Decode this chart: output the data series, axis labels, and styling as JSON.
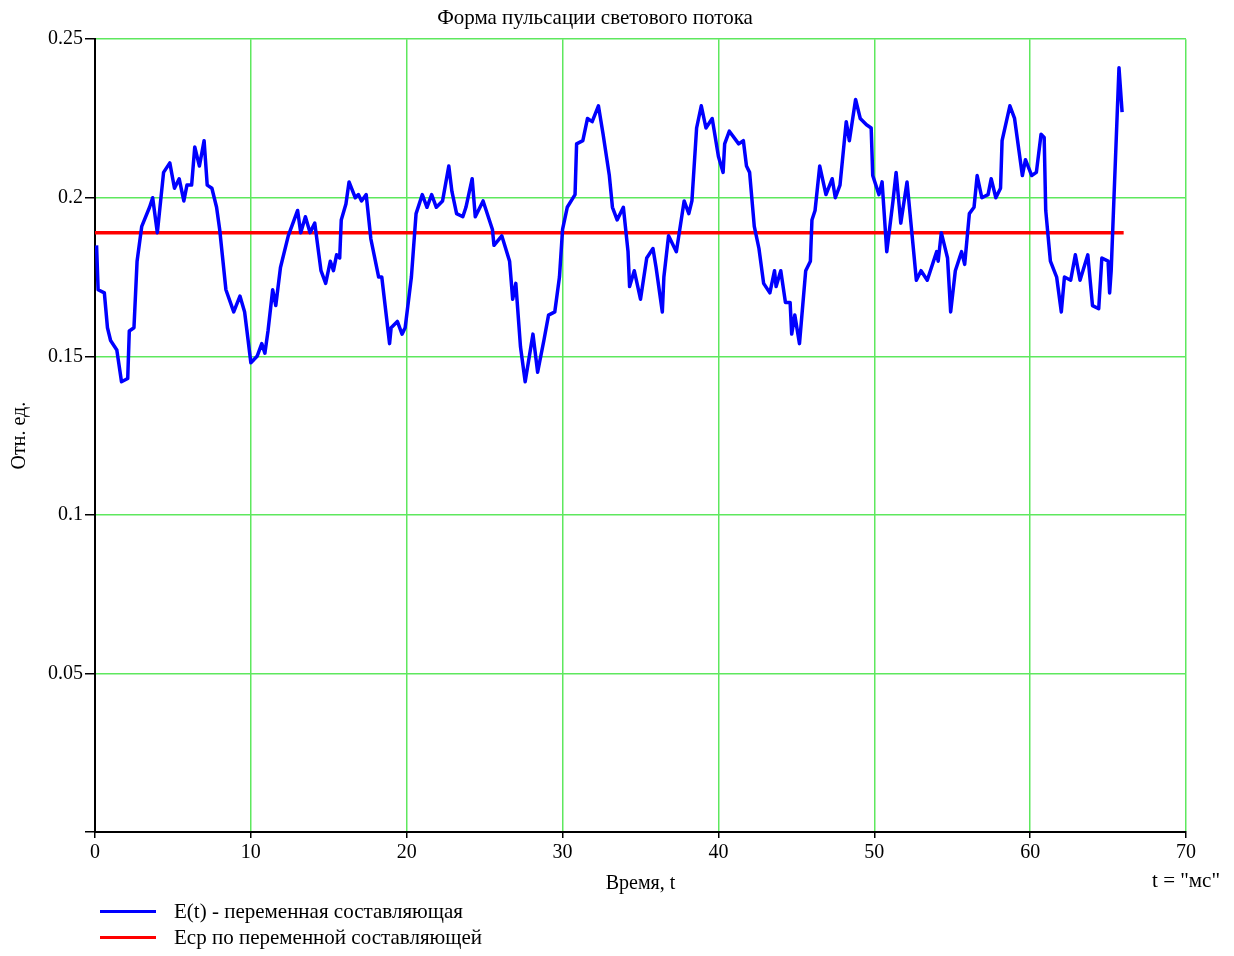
{
  "chart_data": {
    "type": "line",
    "title": "Форма пульсации светового потока",
    "xlabel": "Время, t",
    "ylabel": "Отн. ед.",
    "annotations": [
      "t = \"мс\""
    ],
    "xlim": [
      0,
      70
    ],
    "xticks": [
      0,
      10,
      20,
      30,
      40,
      50,
      60,
      70
    ],
    "ylim": [
      0,
      0.25
    ],
    "yticks": [
      {
        "value": 0,
        "label": null
      },
      0.05,
      0.1,
      0.15,
      0.2,
      0.25
    ],
    "grid": true,
    "legend": "bottom left",
    "marker": "none",
    "line_style": "solid",
    "series": [
      {
        "name": "E(t) - переменная составляющая",
        "color": "#0000ff",
        "x": [
          0.1,
          0.2,
          0.6,
          0.8,
          1.0,
          1.4,
          1.7,
          2.1,
          2.2,
          2.5,
          2.7,
          3.0,
          3.5,
          3.7,
          4.0,
          4.4,
          4.8,
          5.1,
          5.4,
          5.7,
          5.9,
          6.2,
          6.4,
          6.7,
          7.0,
          7.2,
          7.5,
          7.8,
          8.0,
          8.4,
          8.9,
          9.3,
          9.6,
          9.8,
          10.0,
          10.4,
          10.7,
          10.9,
          11.1,
          11.4,
          11.6,
          11.9,
          12.4,
          13.0,
          13.2,
          13.5,
          13.8,
          14.1,
          14.5,
          14.8,
          15.1,
          15.3,
          15.5,
          15.7,
          15.8,
          16.1,
          16.3,
          16.7,
          16.9,
          17.1,
          17.4,
          17.7,
          18.2,
          18.4,
          18.9,
          19.0,
          19.4,
          19.7,
          19.9,
          20.3,
          20.6,
          21.0,
          21.3,
          21.6,
          21.9,
          22.3,
          22.7,
          22.9,
          23.2,
          23.6,
          23.8,
          24.2,
          24.4,
          24.9,
          25.5,
          25.6,
          26.1,
          26.6,
          26.8,
          27.0,
          27.3,
          27.6,
          28.1,
          28.4,
          28.8,
          29.1,
          29.5,
          29.8,
          30.0,
          30.3,
          30.8,
          30.9,
          31.3,
          31.6,
          31.9,
          32.3,
          32.6,
          33.0,
          33.2,
          33.5,
          33.9,
          34.2,
          34.3,
          34.6,
          35.0,
          35.4,
          35.8,
          36.0,
          36.4,
          36.5,
          36.8,
          37.3,
          37.8,
          38.1,
          38.3,
          38.6,
          38.9,
          39.2,
          39.6,
          40.0,
          40.3,
          40.4,
          40.7,
          41.3,
          41.6,
          41.8,
          42.0,
          42.3,
          42.6,
          42.9,
          43.3,
          43.6,
          43.7,
          44.0,
          44.3,
          44.6,
          44.7,
          44.9,
          45.2,
          45.6,
          45.9,
          46.0,
          46.2,
          46.5,
          46.9,
          47.3,
          47.5,
          47.8,
          48.2,
          48.4,
          48.8,
          49.1,
          49.5,
          49.8,
          49.9,
          50.3,
          50.5,
          50.8,
          51.2,
          51.4,
          51.7,
          52.1,
          52.7,
          53.0,
          53.4,
          54.0,
          54.1,
          54.3,
          54.7,
          54.9,
          55.2,
          55.6,
          55.8,
          56.1,
          56.4,
          56.6,
          56.9,
          57.3,
          57.5,
          57.8,
          58.1,
          58.2,
          58.7,
          59.0,
          59.5,
          59.7,
          60.1,
          60.4,
          60.7,
          60.9,
          61.0,
          61.3,
          61.7,
          62.0,
          62.2,
          62.6,
          62.9,
          63.2,
          63.7,
          64.0,
          64.4,
          64.6,
          65.0,
          65.1,
          65.2,
          65.3,
          65.7,
          65.9
        ],
        "values": [
          0.185,
          0.171,
          0.17,
          0.159,
          0.155,
          0.152,
          0.142,
          0.143,
          0.158,
          0.159,
          0.18,
          0.191,
          0.197,
          0.2,
          0.189,
          0.208,
          0.211,
          0.203,
          0.206,
          0.199,
          0.204,
          0.204,
          0.216,
          0.21,
          0.218,
          0.204,
          0.203,
          0.197,
          0.19,
          0.171,
          0.164,
          0.169,
          0.164,
          0.156,
          0.148,
          0.15,
          0.154,
          0.151,
          0.158,
          0.171,
          0.166,
          0.178,
          0.188,
          0.196,
          0.189,
          0.194,
          0.189,
          0.192,
          0.177,
          0.173,
          0.18,
          0.177,
          0.182,
          0.181,
          0.193,
          0.198,
          0.205,
          0.2,
          0.201,
          0.199,
          0.201,
          0.187,
          0.175,
          0.175,
          0.154,
          0.159,
          0.161,
          0.157,
          0.159,
          0.175,
          0.195,
          0.201,
          0.197,
          0.201,
          0.197,
          0.199,
          0.21,
          0.202,
          0.195,
          0.194,
          0.197,
          0.206,
          0.194,
          0.199,
          0.19,
          0.185,
          0.188,
          0.18,
          0.168,
          0.173,
          0.153,
          0.142,
          0.157,
          0.145,
          0.155,
          0.163,
          0.164,
          0.175,
          0.19,
          0.197,
          0.201,
          0.217,
          0.218,
          0.225,
          0.224,
          0.229,
          0.22,
          0.207,
          0.197,
          0.193,
          0.197,
          0.183,
          0.172,
          0.177,
          0.168,
          0.181,
          0.184,
          0.178,
          0.164,
          0.175,
          0.188,
          0.183,
          0.199,
          0.195,
          0.199,
          0.222,
          0.229,
          0.222,
          0.225,
          0.213,
          0.208,
          0.217,
          0.221,
          0.217,
          0.218,
          0.21,
          0.208,
          0.191,
          0.184,
          0.173,
          0.17,
          0.177,
          0.172,
          0.177,
          0.167,
          0.167,
          0.157,
          0.163,
          0.154,
          0.177,
          0.18,
          0.193,
          0.196,
          0.21,
          0.201,
          0.206,
          0.2,
          0.204,
          0.224,
          0.218,
          0.231,
          0.225,
          0.223,
          0.222,
          0.207,
          0.201,
          0.205,
          0.183,
          0.199,
          0.208,
          0.192,
          0.205,
          0.174,
          0.177,
          0.174,
          0.183,
          0.18,
          0.189,
          0.181,
          0.164,
          0.177,
          0.183,
          0.179,
          0.195,
          0.197,
          0.207,
          0.2,
          0.201,
          0.206,
          0.2,
          0.203,
          0.218,
          0.229,
          0.225,
          0.207,
          0.212,
          0.207,
          0.208,
          0.22,
          0.219,
          0.196,
          0.18,
          0.175,
          0.164,
          0.175,
          0.174,
          0.182,
          0.174,
          0.182,
          0.166,
          0.165,
          0.181,
          0.18,
          0.17,
          0.177,
          0.19,
          0.241,
          0.227
        ]
      },
      {
        "name": "Eср по переменной составляющей",
        "color": "#ff0000",
        "x": [
          0,
          66
        ],
        "values": [
          0.189,
          0.189
        ]
      }
    ]
  }
}
